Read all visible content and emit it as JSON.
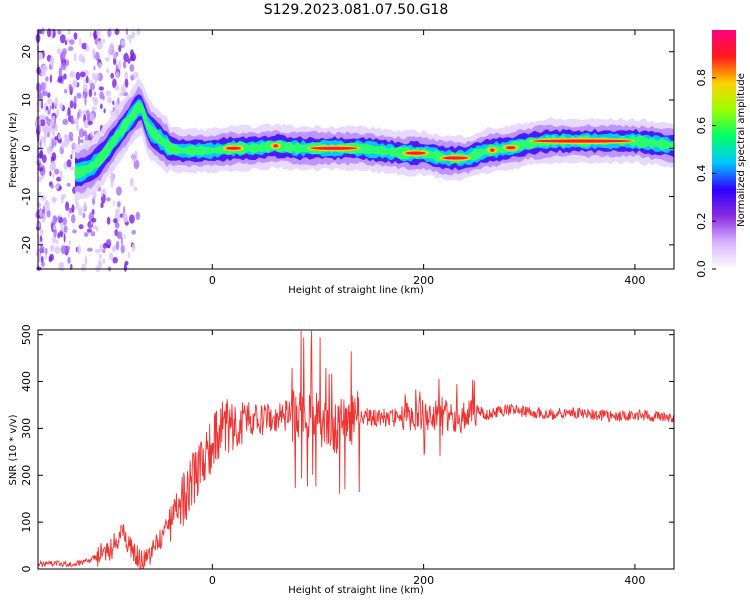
{
  "title": "S129.2023.081.07.50.G18",
  "chart_data": [
    {
      "type": "heatmap",
      "xlabel": "Height of straight line (km)",
      "ylabel": "Frequency (Hz)",
      "xlim": [
        -165,
        437
      ],
      "ylim": [
        -25,
        24.5
      ],
      "xticks": [
        0,
        200,
        400
      ],
      "yticks": [
        -20,
        -10,
        0,
        10,
        20
      ],
      "colorbar": {
        "label": "Normalized spectral amplitude",
        "range": [
          0,
          1
        ],
        "ticks": [
          0.0,
          0.2,
          0.4,
          0.6,
          0.8
        ],
        "colors": [
          "#ffffff",
          "#d9b3ff",
          "#8a2be2",
          "#2e00ff",
          "#00c8ff",
          "#00ff66",
          "#9cff00",
          "#ffd200",
          "#ff1a1a",
          "#ff0080"
        ]
      },
      "ridge": {
        "x": [
          -125,
          -115,
          -105,
          -95,
          -85,
          -75,
          -68,
          -60,
          -50,
          -40,
          -30,
          -20,
          0,
          20,
          40,
          60,
          80,
          100,
          120,
          140,
          160,
          180,
          200,
          210,
          220,
          240,
          260,
          280,
          300,
          320,
          340,
          360,
          380,
          400,
          420,
          437
        ],
        "y": [
          -5,
          -4,
          -2,
          1,
          4,
          7,
          9,
          4,
          2,
          0,
          -0.5,
          -0.5,
          -0.5,
          0,
          0,
          0.5,
          0,
          0,
          0,
          0,
          -0.5,
          -1,
          -1,
          -1.5,
          -2,
          -2,
          -0.5,
          0,
          1,
          1.5,
          1.5,
          1.5,
          1.5,
          1.5,
          1,
          0.5
        ]
      }
    },
    {
      "type": "line",
      "xlabel": "Height of straight line (km)",
      "ylabel": "SNR (10 * v/v)",
      "xlim": [
        -165,
        437
      ],
      "ylim": [
        0,
        510
      ],
      "xticks": [
        0,
        200,
        400
      ],
      "yticks": [
        0,
        100,
        200,
        300,
        400,
        500
      ],
      "color": "#ee3333",
      "series": [
        {
          "x": [
            -165,
            -150,
            -130,
            -115,
            -105,
            -95,
            -90,
            -85,
            -80,
            -75,
            -70,
            -65,
            -60,
            -55,
            -50,
            -45,
            -40,
            -35,
            -30,
            -25,
            -20,
            -15,
            -10,
            -5,
            0,
            5,
            10,
            15,
            20,
            25,
            30,
            40,
            50,
            60,
            70,
            80,
            90,
            100,
            110,
            120,
            130,
            140,
            150,
            160,
            170,
            180,
            190,
            200,
            210,
            220,
            230,
            240,
            250,
            260,
            280,
            300,
            320,
            340,
            360,
            380,
            400,
            420,
            437
          ],
          "y": [
            10,
            12,
            10,
            20,
            35,
            45,
            65,
            80,
            55,
            40,
            25,
            15,
            20,
            45,
            60,
            80,
            110,
            125,
            130,
            160,
            190,
            200,
            215,
            250,
            265,
            290,
            300,
            305,
            310,
            320,
            325,
            318,
            318,
            320,
            325,
            330,
            320,
            320,
            310,
            300,
            320,
            330,
            320,
            325,
            320,
            330,
            330,
            330,
            330,
            330,
            320,
            330,
            340,
            330,
            340,
            335,
            330,
            335,
            330,
            325,
            330,
            325,
            320
          ]
        }
      ]
    }
  ]
}
